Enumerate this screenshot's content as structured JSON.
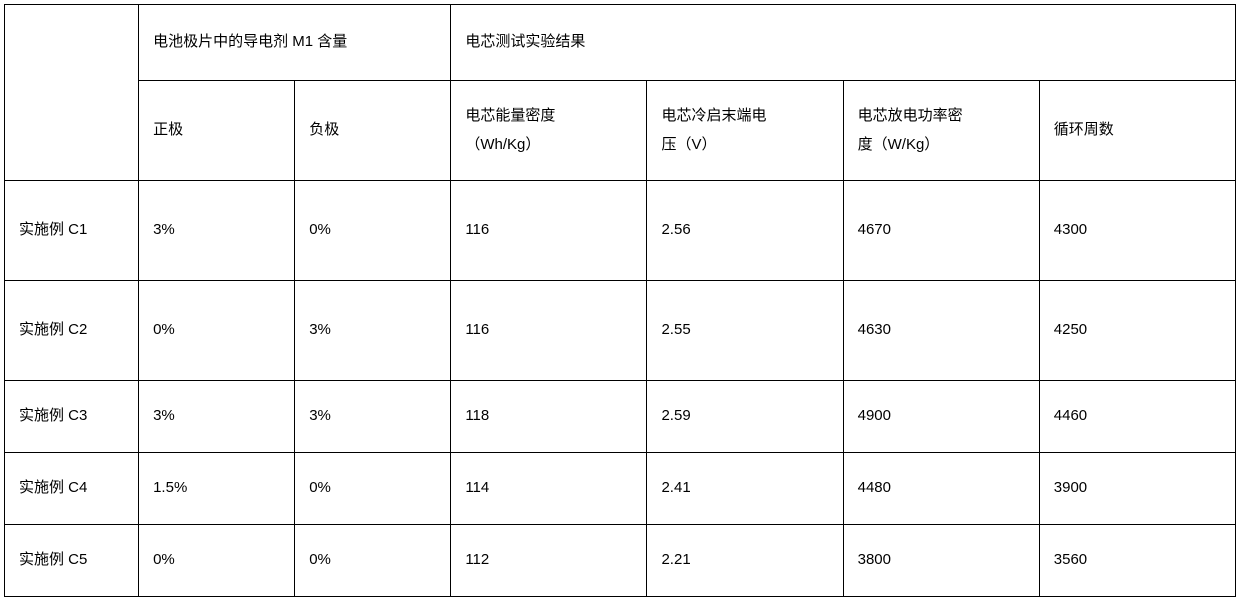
{
  "table": {
    "header_top": {
      "blank": "",
      "group_a": "电池极片中的导电剂 M1 含量",
      "group_b": "电芯测试实验结果"
    },
    "header_sub": {
      "c1": "正极",
      "c2": "负极",
      "c3_l1": "电芯能量密度",
      "c3_l2": "（Wh/Kg）",
      "c4_l1": "电芯冷启末端电",
      "c4_l2": "压（V）",
      "c5_l1": "电芯放电功率密",
      "c5_l2": "度（W/Kg）",
      "c6": "循环周数"
    },
    "row_heights": [
      "r0",
      "r1",
      "r2",
      "r3",
      "r4"
    ],
    "rows": [
      {
        "c0": "实施例 C1",
        "c1": "3%",
        "c2": "0%",
        "c3": "116",
        "c4": "2.56",
        "c5": "4670",
        "c6": "4300"
      },
      {
        "c0": "实施例 C2",
        "c1": "0%",
        "c2": "3%",
        "c3": "116",
        "c4": "2.55",
        "c5": "4630",
        "c6": "4250"
      },
      {
        "c0": "实施例 C3",
        "c1": "3%",
        "c2": "3%",
        "c3": "118",
        "c4": "2.59",
        "c5": "4900",
        "c6": "4460"
      },
      {
        "c0": "实施例 C4",
        "c1": "1.5%",
        "c2": "0%",
        "c3": "114",
        "c4": "2.41",
        "c5": "4480",
        "c6": "3900"
      },
      {
        "c0": "实施例 C5",
        "c1": "0%",
        "c2": "0%",
        "c3": "112",
        "c4": "2.21",
        "c5": "3800",
        "c6": "3560"
      }
    ]
  },
  "style": {
    "font_size_pt": 11,
    "border_color": "#000000",
    "background_color": "#ffffff",
    "text_color": "#000000",
    "cell_align": "left"
  }
}
